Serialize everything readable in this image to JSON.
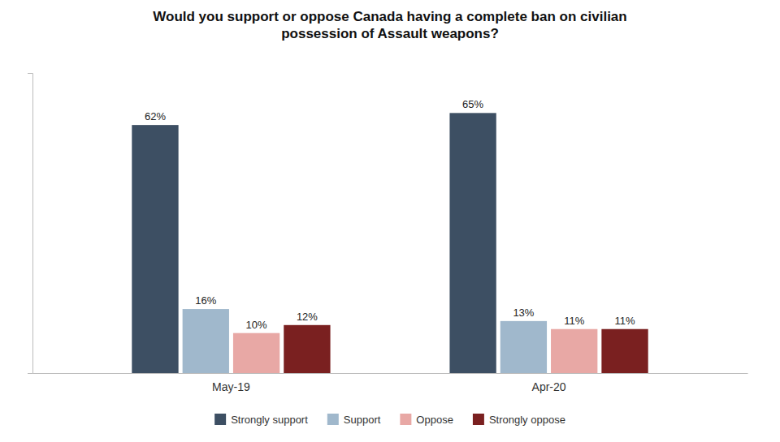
{
  "chart_data": {
    "type": "bar",
    "title": "Would you support or oppose Canada having a complete ban on civilian\npossession of Assault weapons?",
    "categories": [
      "May-19",
      "Apr-20"
    ],
    "series": [
      {
        "name": "Strongly support",
        "color": "#3d4f63",
        "values": [
          62,
          65
        ],
        "value_labels": [
          "62%",
          "65%"
        ]
      },
      {
        "name": "Support",
        "color": "#a0b8cc",
        "values": [
          16,
          13
        ],
        "value_labels": [
          "16%",
          "13%"
        ]
      },
      {
        "name": "Oppose",
        "color": "#e8a8a5",
        "values": [
          10,
          11
        ],
        "value_labels": [
          "10%",
          "11%"
        ]
      },
      {
        "name": "Strongly oppose",
        "color": "#7a2020",
        "values": [
          12,
          11
        ],
        "value_labels": [
          "12%",
          "11%"
        ]
      }
    ],
    "ylim": [
      0,
      75
    ],
    "grid": false,
    "legend": "bottom",
    "data_labels": true,
    "tick_labels": "x"
  }
}
